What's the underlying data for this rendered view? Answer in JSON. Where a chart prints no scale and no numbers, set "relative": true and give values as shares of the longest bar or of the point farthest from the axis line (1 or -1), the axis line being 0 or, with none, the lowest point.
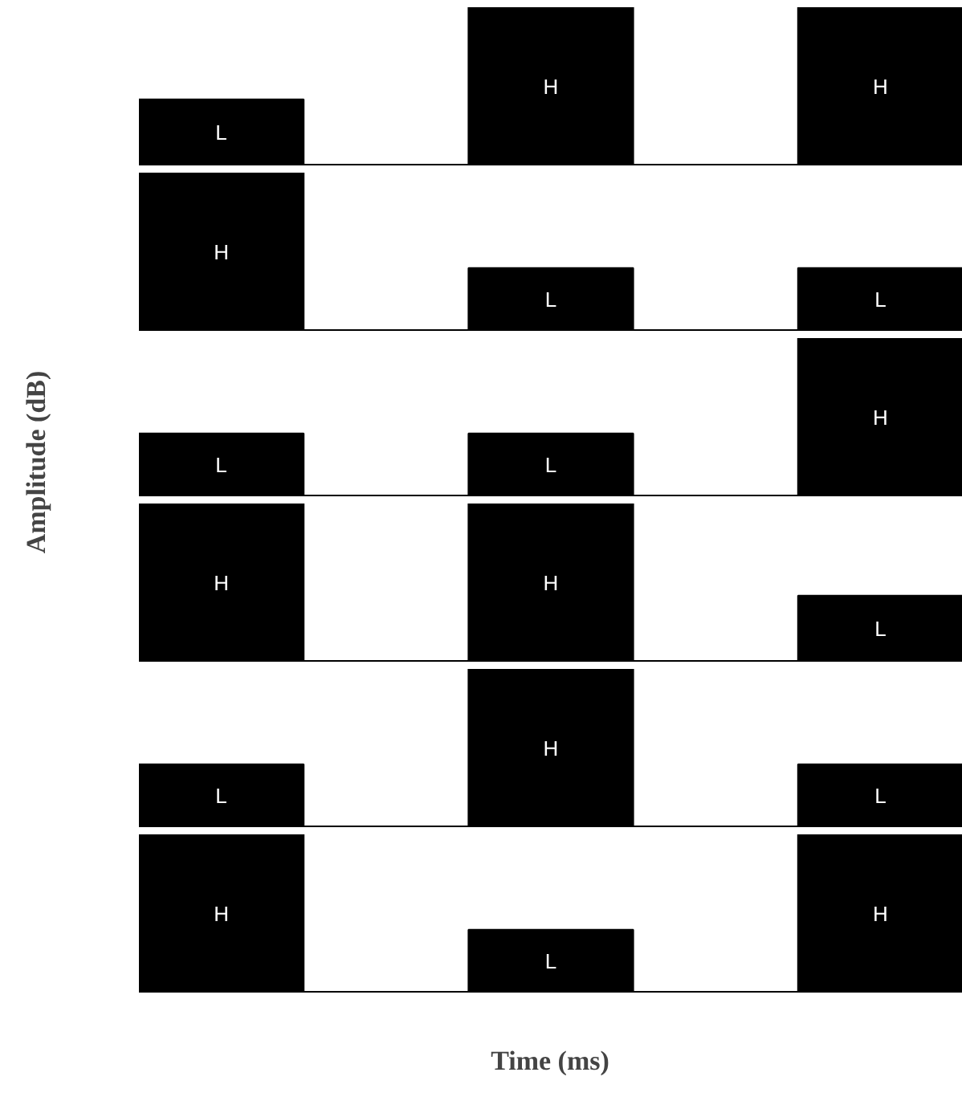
{
  "chart_data": [
    {
      "type": "bar",
      "relative": true,
      "categories": [
        null,
        null,
        null
      ],
      "values": [
        0.42,
        1,
        1
      ],
      "annotations": [
        "L",
        "H",
        "H"
      ],
      "color": "#000000"
    },
    {
      "type": "bar",
      "relative": true,
      "categories": [
        null,
        null,
        null
      ],
      "values": [
        1,
        0.4,
        0.4
      ],
      "annotations": [
        "H",
        "L",
        "L"
      ],
      "color": "#000000"
    },
    {
      "type": "bar",
      "relative": true,
      "ylabel": "Amplitude (dB)",
      "categories": [
        null,
        null,
        null
      ],
      "values": [
        0.4,
        0.4,
        1
      ],
      "annotations": [
        "L",
        "L",
        "H"
      ],
      "color": "#000000"
    },
    {
      "type": "bar",
      "relative": true,
      "categories": [
        null,
        null,
        null
      ],
      "values": [
        1,
        1,
        0.42
      ],
      "annotations": [
        "H",
        "H",
        "L"
      ],
      "color": "#000000"
    },
    {
      "type": "bar",
      "relative": true,
      "categories": [
        null,
        null,
        null
      ],
      "values": [
        0.4,
        1,
        0.4
      ],
      "annotations": [
        "L",
        "H",
        "L"
      ],
      "color": "#000000"
    },
    {
      "type": "bar",
      "relative": true,
      "xlabel": "Time (ms)",
      "categories": [
        null,
        null,
        null
      ],
      "values": [
        1,
        0.4,
        1
      ],
      "annotations": [
        "H",
        "L",
        "H"
      ],
      "color": "#000000"
    }
  ]
}
